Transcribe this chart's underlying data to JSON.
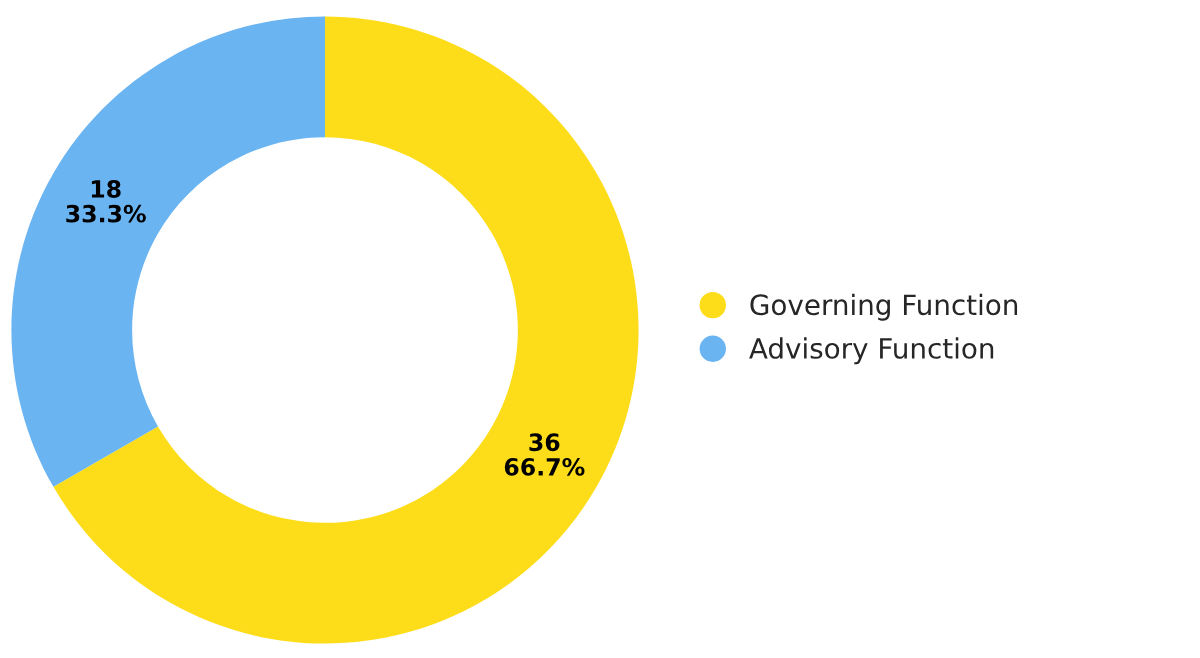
{
  "chart_data": {
    "type": "donut",
    "categories": [
      "Governing Function",
      "Advisory Function"
    ],
    "values": [
      36,
      18
    ],
    "colors": [
      "#fddd1a",
      "#6ab4f2"
    ],
    "value_labels": [
      "36\n66.7%",
      "18\n33.3%"
    ],
    "legend": "right"
  }
}
